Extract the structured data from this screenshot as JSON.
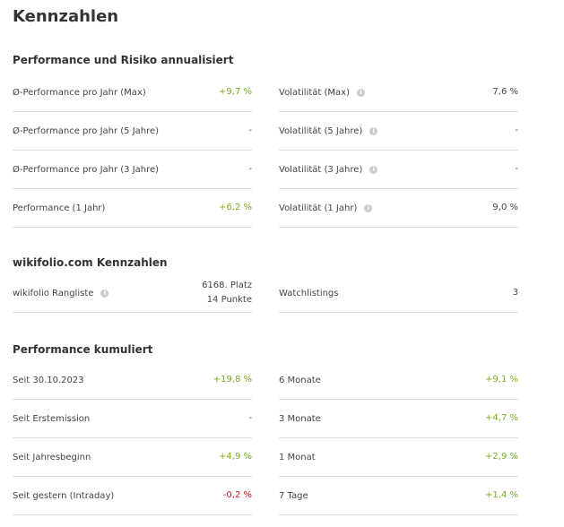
{
  "title": "Kennzahlen",
  "sections": [
    {
      "title": "Performance und Risiko annualisiert",
      "left": [
        {
          "label": "Ø-Performance pro Jahr (Max)",
          "value": "+9,7 %",
          "tone": "pos"
        },
        {
          "label": "Ø-Performance pro Jahr (5 Jahre)",
          "value": "-",
          "tone": ""
        },
        {
          "label": "Ø-Performance pro Jahr (3 Jahre)",
          "value": "-",
          "tone": ""
        },
        {
          "label": "Performance (1 Jahr)",
          "value": "+6,2 %",
          "tone": "pos"
        }
      ],
      "right": [
        {
          "label": "Volatilität (Max)",
          "value": "7,6 %",
          "tone": "",
          "info": true
        },
        {
          "label": "Volatilität (5 Jahre)",
          "value": "-",
          "tone": "",
          "info": true
        },
        {
          "label": "Volatilität (3 Jahre)",
          "value": "-",
          "tone": "",
          "info": true
        },
        {
          "label": "Volatilität (1 Jahr)",
          "value": "9,0 %",
          "tone": "",
          "info": true
        }
      ]
    },
    {
      "title": "wikifolio.com Kennzahlen",
      "left": [
        {
          "label": "wikifolio Rangliste",
          "value": "6168. Platz",
          "value2": "14 Punkte",
          "tone": "",
          "info": true
        }
      ],
      "right": [
        {
          "label": "Watchlistings",
          "value": "3",
          "tone": ""
        }
      ]
    },
    {
      "title": "Performance kumuliert",
      "left": [
        {
          "label": "Seit 30.10.2023",
          "value": "+19,8 %",
          "tone": "pos"
        },
        {
          "label": "Seit Erstemission",
          "value": "-",
          "tone": ""
        },
        {
          "label": "Seit Jahresbeginn",
          "value": "+4,9 %",
          "tone": "pos"
        },
        {
          "label": "Seit gestern (Intraday)",
          "value": "-0,2 %",
          "tone": "neg"
        }
      ],
      "right": [
        {
          "label": "6 Monate",
          "value": "+9,1 %",
          "tone": "pos"
        },
        {
          "label": "3 Monate",
          "value": "+4,7 %",
          "tone": "pos"
        },
        {
          "label": "1 Monat",
          "value": "+2,9 %",
          "tone": "pos"
        },
        {
          "label": "7 Tage",
          "value": "+1,4 %",
          "tone": "pos"
        }
      ]
    }
  ],
  "info_glyph": "i"
}
